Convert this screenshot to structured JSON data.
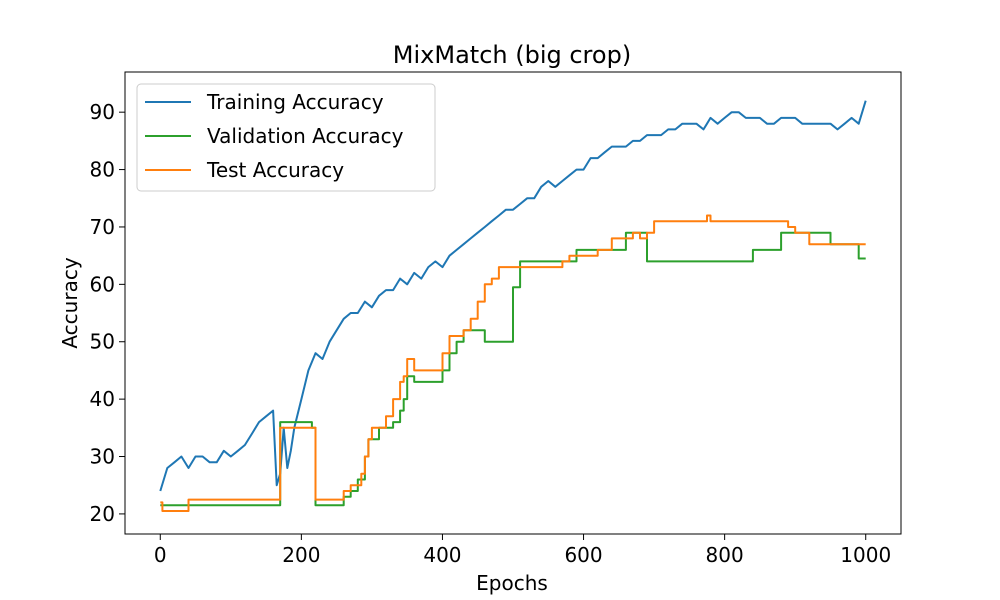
{
  "chart_data": {
    "type": "line",
    "title": "MixMatch (big crop)",
    "xlabel": "Epochs",
    "ylabel": "Accuracy",
    "xlim": [
      -50,
      1050
    ],
    "ylim": [
      16.5,
      97
    ],
    "xticks": [
      0,
      200,
      400,
      600,
      800,
      1000
    ],
    "yticks": [
      20,
      30,
      40,
      50,
      60,
      70,
      80,
      90
    ],
    "grid": false,
    "legend_position": "top-left",
    "series": [
      {
        "name": "Training Accuracy",
        "color": "#1f77b4",
        "x": [
          0,
          10,
          20,
          30,
          40,
          50,
          60,
          70,
          80,
          90,
          100,
          110,
          120,
          130,
          140,
          150,
          160,
          165,
          170,
          175,
          180,
          185,
          190,
          200,
          210,
          220,
          230,
          240,
          250,
          260,
          270,
          280,
          290,
          300,
          310,
          320,
          330,
          340,
          350,
          360,
          370,
          380,
          390,
          400,
          410,
          420,
          430,
          440,
          450,
          460,
          470,
          480,
          490,
          500,
          510,
          520,
          530,
          540,
          550,
          560,
          570,
          580,
          590,
          600,
          610,
          620,
          630,
          640,
          650,
          660,
          670,
          680,
          690,
          700,
          710,
          720,
          730,
          740,
          750,
          760,
          770,
          775,
          780,
          790,
          800,
          810,
          820,
          830,
          840,
          850,
          860,
          870,
          880,
          890,
          900,
          910,
          920,
          930,
          940,
          950,
          960,
          970,
          980,
          990,
          1000
        ],
        "values": [
          24,
          28,
          29,
          30,
          28,
          30,
          30,
          29,
          29,
          31,
          30,
          31,
          32,
          34,
          36,
          37,
          38,
          25,
          27,
          35,
          28,
          31,
          35,
          40,
          45,
          48,
          47,
          50,
          52,
          54,
          55,
          55,
          57,
          56,
          58,
          59,
          59,
          61,
          60,
          62,
          61,
          63,
          64,
          63,
          65,
          66,
          67,
          68,
          69,
          70,
          71,
          72,
          73,
          73,
          74,
          75,
          75,
          77,
          78,
          77,
          78,
          79,
          80,
          80,
          82,
          82,
          83,
          84,
          84,
          84,
          85,
          85,
          86,
          86,
          86,
          87,
          87,
          88,
          88,
          88,
          87,
          88,
          89,
          88,
          89,
          90,
          90,
          89,
          89,
          89,
          88,
          88,
          89,
          89,
          89,
          88,
          88,
          88,
          88,
          88,
          87,
          88,
          89,
          88,
          92
        ]
      },
      {
        "name": "Validation Accuracy",
        "color": "#2ca02c",
        "x": [
          0,
          3,
          40,
          165,
          170,
          200,
          210,
          215,
          220,
          255,
          260,
          270,
          280,
          285,
          290,
          295,
          300,
          310,
          320,
          330,
          340,
          345,
          350,
          360,
          370,
          380,
          400,
          410,
          420,
          430,
          440,
          460,
          480,
          500,
          510,
          520,
          530,
          540,
          560,
          570,
          580,
          590,
          600,
          620,
          630,
          640,
          650,
          660,
          670,
          680,
          690,
          700,
          720,
          740,
          760,
          775,
          780,
          800,
          820,
          840,
          860,
          880,
          890,
          900,
          920,
          940,
          950,
          960,
          970,
          990,
          1000
        ],
        "values": [
          21.5,
          21.5,
          21.5,
          21.5,
          36,
          36,
          36,
          35,
          21.5,
          21.5,
          23,
          24,
          26,
          26,
          30,
          33,
          33,
          35,
          35,
          36,
          38,
          40,
          44,
          43,
          43,
          43,
          45,
          48,
          50,
          52,
          52,
          50,
          50,
          59.5,
          64,
          64,
          64,
          64,
          64,
          64,
          64,
          66,
          66,
          66,
          66,
          66,
          66,
          69,
          69,
          69,
          64,
          64,
          64,
          64,
          64,
          64,
          64,
          64,
          64,
          66,
          66,
          69,
          69,
          69,
          69,
          69,
          67,
          67,
          67,
          64.5,
          64.5
        ]
      },
      {
        "name": "Test Accuracy",
        "color": "#ff7f0e",
        "x": [
          0,
          3,
          40,
          165,
          170,
          200,
          210,
          215,
          220,
          255,
          260,
          270,
          280,
          285,
          290,
          295,
          300,
          310,
          320,
          330,
          340,
          345,
          350,
          360,
          370,
          380,
          400,
          410,
          420,
          430,
          440,
          450,
          460,
          470,
          480,
          490,
          500,
          510,
          520,
          530,
          540,
          560,
          570,
          580,
          590,
          600,
          620,
          630,
          640,
          650,
          660,
          670,
          680,
          690,
          700,
          720,
          740,
          760,
          775,
          780,
          800,
          820,
          840,
          860,
          880,
          890,
          900,
          920,
          940,
          950,
          960,
          970,
          990,
          1000
        ],
        "values": [
          22,
          20.5,
          22.5,
          22.5,
          35,
          35,
          35,
          35,
          22.5,
          22.5,
          24,
          25,
          25,
          27,
          30,
          33,
          35,
          35,
          37,
          40,
          43,
          44,
          47,
          45,
          45,
          45,
          48,
          51,
          51,
          52,
          54,
          57,
          60,
          61,
          63,
          63,
          63,
          63,
          63,
          63,
          63,
          63,
          64,
          65,
          65,
          65,
          66,
          66,
          68,
          68,
          68,
          69,
          68,
          69,
          71,
          71,
          71,
          71,
          72,
          71,
          71,
          71,
          71,
          71,
          71,
          70,
          69,
          67,
          67,
          67,
          67,
          67,
          67,
          67
        ]
      }
    ]
  }
}
